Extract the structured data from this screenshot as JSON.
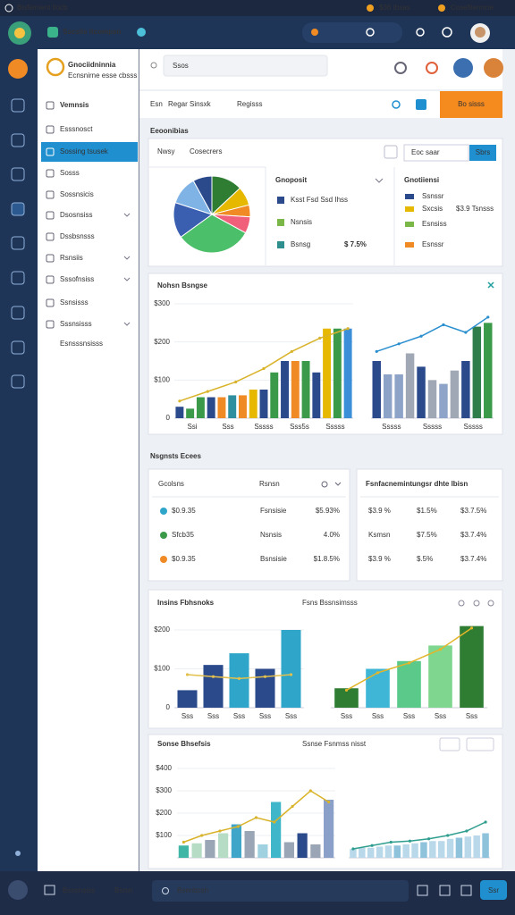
{
  "status_bar": {
    "left": "Bisfiement tlocb",
    "right_1": "$36 Ibsas",
    "right_2": "Cosefiienncie"
  },
  "app_header": {
    "title": "Sscsiis itcompsn"
  },
  "sidebar": {
    "brand": "Gnociidninnia",
    "brand_sub": "Ecnsnirne esse cbsss",
    "menu": [
      "Vemnsis",
      "Esssnosct",
      "Sossing tsusek",
      "Sosss",
      "Sossnsicis",
      "Dsosnsiss",
      "Dssbsnsss",
      "Rsnsiis",
      "Sssofnsiss",
      "Ssnsisss",
      "Sssnsisss"
    ],
    "footer": "Esnsssnsisss"
  },
  "search": "Ssos",
  "toolbar": {
    "tab_1": "Esn",
    "tab_2": "Regar Sinsxk",
    "tab_3": "Regisss",
    "button": "Bo sisss"
  },
  "economics": {
    "title": "Eeoonibias",
    "filter_1": "Nwsy",
    "filter_2": "Cosecrers",
    "input": "Eoc saar",
    "button": "Sbrs",
    "pie": {
      "values": [
        13,
        8,
        5,
        7,
        32,
        15,
        12,
        8
      ],
      "colors": [
        "#2e7d32",
        "#e6b800",
        "#f08a24",
        "#f0607a",
        "#4cbf6a",
        "#3a5fb0",
        "#7fb3e6",
        "#2a4a8c"
      ]
    },
    "legend_1": {
      "title": "Gnoposit",
      "items": [
        {
          "label": "Ksst Fsd Ssd Ihss",
          "color": "#2a4a8c"
        },
        {
          "label": "Nsnsis",
          "color": "#7ab648"
        },
        {
          "label": "Bsnsg",
          "color": "#2f8f8f",
          "note": "$ 7.5%"
        }
      ]
    },
    "legend_2": {
      "title": "Gnotiiensi",
      "items": [
        {
          "label": "Ssnssr",
          "color": "#2a4a8c"
        },
        {
          "label": "Sxcsis",
          "color": "#e6b800",
          "note": "$3.9 Tsnsss"
        },
        {
          "label": "Esnsiss",
          "color": "#7ab648"
        },
        {
          "label": "Esnssr",
          "color": "#f08a24"
        }
      ]
    }
  },
  "bar_card": {
    "title": "Nohsn Bsngse",
    "left": {
      "ylim": [
        0,
        300
      ],
      "yticks": [
        {
          "value": 0,
          "label": "0"
        },
        {
          "value": 100,
          "label": "$100"
        },
        {
          "value": 200,
          "label": "$200"
        },
        {
          "value": 300,
          "label": "$300"
        }
      ],
      "xlabels": [
        "Ssi",
        "Sss",
        "Sssss",
        "Sss5s",
        "Sssss"
      ],
      "bars": [
        {
          "value": 30,
          "color": "#2a4a8c"
        },
        {
          "value": 25,
          "color": "#3a9a4a"
        },
        {
          "value": 55,
          "color": "#3a9a4a"
        },
        {
          "value": 55,
          "color": "#2a4a8c"
        },
        {
          "value": 55,
          "color": "#f08a24"
        },
        {
          "value": 60,
          "color": "#2f8f9f"
        },
        {
          "value": 60,
          "color": "#f08a24"
        },
        {
          "value": 75,
          "color": "#e6b800"
        },
        {
          "value": 75,
          "color": "#2a4a8c"
        },
        {
          "value": 120,
          "color": "#3a9a4a"
        },
        {
          "value": 150,
          "color": "#2a4a8c"
        },
        {
          "value": 150,
          "color": "#f08a24"
        },
        {
          "value": 150,
          "color": "#3a9a4a"
        },
        {
          "value": 120,
          "color": "#2a4a8c"
        },
        {
          "value": 235,
          "color": "#e6b800"
        },
        {
          "value": 235,
          "color": "#3a9a4a"
        },
        {
          "value": 235,
          "color": "#3b8ed8"
        }
      ],
      "line": {
        "color": "#d9b32a",
        "values": [
          45,
          70,
          95,
          130,
          175,
          210,
          235
        ]
      }
    },
    "right": {
      "ylim": [
        0,
        300
      ],
      "xlabels": [
        "Sssss",
        "Sssss",
        "Sssss"
      ],
      "bars": [
        {
          "value": 150,
          "color": "#2a4a8c"
        },
        {
          "value": 115,
          "color": "#8da3c8"
        },
        {
          "value": 115,
          "color": "#8da3c8"
        },
        {
          "value": 170,
          "color": "#a0a8b5"
        },
        {
          "value": 135,
          "color": "#2a4a8c"
        },
        {
          "value": 100,
          "color": "#a0a8b5"
        },
        {
          "value": 90,
          "color": "#8da3c8"
        },
        {
          "value": 125,
          "color": "#a0a8b5"
        },
        {
          "value": 150,
          "color": "#2a4a8c"
        },
        {
          "value": 240,
          "color": "#2e7d4a"
        },
        {
          "value": 250,
          "color": "#3a9a4a"
        }
      ],
      "line": {
        "color": "#2a8fcf",
        "values": [
          175,
          195,
          215,
          245,
          225,
          265
        ]
      }
    }
  },
  "section_2": "Nsgnsts Ecees",
  "table_left": {
    "header_1": "Gcolsns",
    "header_2": "Rsnsn",
    "rows": [
      {
        "amount": "$0.9.35",
        "label": "Fsnsisie",
        "value": "$5.93%",
        "dot": "#2fa6c9",
        "color": "#e0603a"
      },
      {
        "amount": "Sfcb35",
        "label": "Nsnsis",
        "value": "4.0%",
        "dot": "#3a9a4a",
        "color": "#555555"
      },
      {
        "amount": "$0.9.35",
        "label": "Bsnsisie",
        "value": "$1.8.5%",
        "dot": "#f08a24",
        "color": "#e6a020"
      }
    ]
  },
  "table_right": {
    "header": "Fsnfacnemintungsr dhte lbisn",
    "col_colors": [
      "#555555",
      "#3a9a3a",
      "#3a9a3a"
    ],
    "rows": [
      [
        "$3.9 %",
        "$1.5%",
        "$3.7.5%"
      ],
      [
        "Ksmsn",
        "$7.5%",
        "$3.7.4%"
      ],
      [
        "$3.9 %",
        "$.5%",
        "$3.7.4%"
      ]
    ]
  },
  "insight_card": {
    "title": "Insins Fbhsnoks",
    "subtitle": "Fsns Bssnsimsss",
    "left": {
      "ylim": [
        0,
        200
      ],
      "yticks": [
        {
          "value": 0,
          "label": "0"
        },
        {
          "value": 100,
          "label": "$100"
        },
        {
          "value": 200,
          "label": "$200"
        }
      ],
      "xlabels": [
        "Sss",
        "Sss",
        "Sss",
        "Sss",
        "Sss"
      ],
      "bars": [
        {
          "value": 45,
          "color": "#2a4a8c"
        },
        {
          "value": 110,
          "color": "#2a4a8c"
        },
        {
          "value": 140,
          "color": "#2fa6c9"
        },
        {
          "value": 100,
          "color": "#2a4a8c"
        },
        {
          "value": 200,
          "color": "#2fa6c9"
        }
      ],
      "line": {
        "color": "#e3c04b",
        "values": [
          85,
          80,
          75,
          80,
          85
        ]
      }
    },
    "right": {
      "ylim": [
        0,
        200
      ],
      "xlabels": [
        "Sss",
        "Sss",
        "Sss",
        "Sss",
        "Sss"
      ],
      "bars": [
        {
          "value": 50,
          "color": "#2e7d32"
        },
        {
          "value": 100,
          "color": "#3fb6d6"
        },
        {
          "value": 120,
          "color": "#5ac98a"
        },
        {
          "value": 160,
          "color": "#7fd68f"
        },
        {
          "value": 210,
          "color": "#2e7d32"
        }
      ],
      "line": {
        "color": "#e3b52b",
        "values": [
          45,
          90,
          115,
          150,
          205
        ]
      }
    }
  },
  "sales_card": {
    "title": "Sonse Bhsefsis",
    "subtitle": "Ssnse Fsnmss nisst",
    "left": {
      "ylim": [
        0,
        400
      ],
      "yticks": [
        {
          "value": 100,
          "label": "$100"
        },
        {
          "value": 200,
          "label": "$200"
        },
        {
          "value": 300,
          "label": "$300"
        },
        {
          "value": 400,
          "label": "$400"
        }
      ],
      "bars": [
        {
          "value": 55,
          "color": "#3fb6a6"
        },
        {
          "value": 65,
          "color": "#b7dcc6"
        },
        {
          "value": 80,
          "color": "#9aa5b5"
        },
        {
          "value": 110,
          "color": "#b7dcc6"
        },
        {
          "value": 150,
          "color": "#3fa6c9"
        },
        {
          "value": 120,
          "color": "#9aa5b5"
        },
        {
          "value": 60,
          "color": "#9fd1e0"
        },
        {
          "value": 250,
          "color": "#3fb6c9"
        },
        {
          "value": 70,
          "color": "#9aa5b5"
        },
        {
          "value": 110,
          "color": "#2a4a8c"
        },
        {
          "value": 60,
          "color": "#9aa5b5"
        },
        {
          "value": 260,
          "color": "#8aa0c8"
        }
      ],
      "line": {
        "color": "#d9b32a",
        "values": [
          70,
          100,
          120,
          140,
          180,
          160,
          230,
          300,
          250
        ]
      }
    },
    "right": {
      "ylim": [
        0,
        400
      ],
      "bars": [
        {
          "value": 40,
          "color": "#b9d9ea"
        },
        {
          "value": 45,
          "color": "#b9d9ea"
        },
        {
          "value": 45,
          "color": "#b9d9ea"
        },
        {
          "value": 50,
          "color": "#b9d9ea"
        },
        {
          "value": 55,
          "color": "#b9d9ea"
        },
        {
          "value": 55,
          "color": "#8fc3dc"
        },
        {
          "value": 60,
          "color": "#b9d9ea"
        },
        {
          "value": 65,
          "color": "#b9d9ea"
        },
        {
          "value": 70,
          "color": "#8fc3dc"
        },
        {
          "value": 75,
          "color": "#b9d9ea"
        },
        {
          "value": 75,
          "color": "#b9d9ea"
        },
        {
          "value": 85,
          "color": "#b9d9ea"
        },
        {
          "value": 90,
          "color": "#8fc3dc"
        },
        {
          "value": 95,
          "color": "#b9d9ea"
        },
        {
          "value": 100,
          "color": "#b9d9ea"
        },
        {
          "value": 110,
          "color": "#8fc3dc"
        }
      ],
      "line": {
        "color": "#2f9e8f",
        "values": [
          40,
          55,
          70,
          75,
          85,
          100,
          120,
          160
        ]
      }
    }
  },
  "bottom_bar": {
    "label_1": "Bsosnsiss",
    "label_2": "Bsrsn",
    "search": "Bsenbcsh",
    "button": "Ssr"
  }
}
